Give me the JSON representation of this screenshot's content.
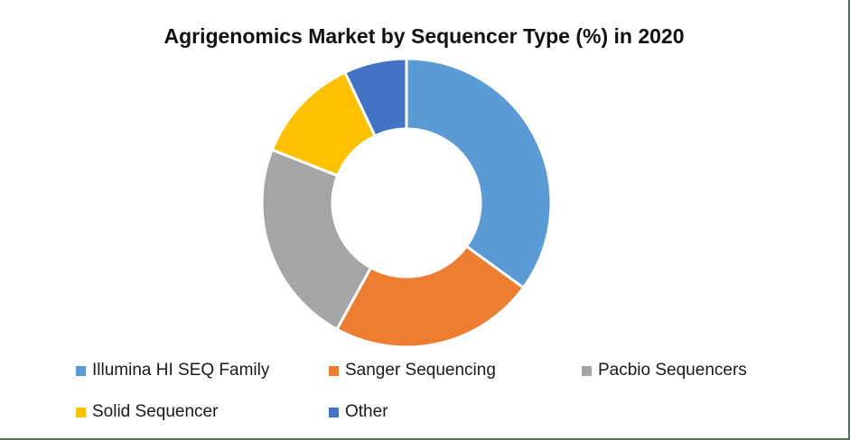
{
  "frame": {
    "background_color": "#ffffff",
    "border_color": "#4d7359"
  },
  "chart_data": {
    "type": "pie",
    "subtype": "donut",
    "title": "Agrigenomics Market by Sequencer Type (%) in 2020",
    "unit": "%",
    "hole_ratio": 0.51,
    "start_angle_deg": 0,
    "direction": "clockwise",
    "separator_color": "#ffffff",
    "legend_position": "bottom",
    "slices": [
      {
        "label": "Illumina HI SEQ Family",
        "value": 35,
        "color": "#5B9BD5"
      },
      {
        "label": "Sanger Sequencing",
        "value": 23,
        "color": "#ED7D31"
      },
      {
        "label": "Pacbio Sequencers",
        "value": 23,
        "color": "#A5A5A5"
      },
      {
        "label": "Solid Sequencer",
        "value": 12,
        "color": "#FFC000"
      },
      {
        "label": "Other",
        "value": 7,
        "color": "#4472C4"
      }
    ]
  }
}
